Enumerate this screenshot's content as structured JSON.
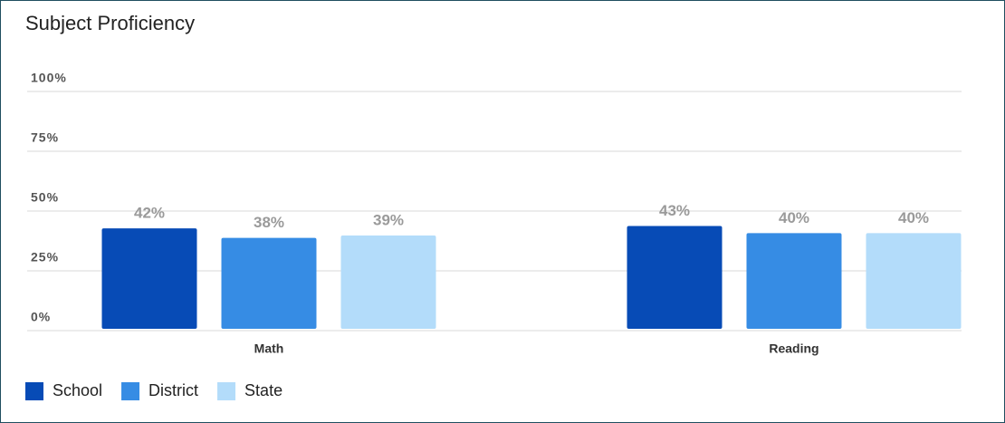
{
  "chart_data": {
    "type": "bar",
    "title": "Subject Proficiency",
    "categories": [
      "Math",
      "Reading"
    ],
    "series": [
      {
        "name": "School",
        "color": "#074bb6",
        "values": [
          42,
          43
        ],
        "value_labels": [
          "42%",
          "43%"
        ]
      },
      {
        "name": "District",
        "color": "#368ce4",
        "values": [
          38,
          40
        ],
        "value_labels": [
          "38%",
          "40%"
        ]
      },
      {
        "name": "State",
        "color": "#b3dcfa",
        "values": [
          39,
          40
        ],
        "value_labels": [
          "39%",
          "40%"
        ]
      }
    ],
    "ylim": [
      0,
      100
    ],
    "yticks": [
      {
        "value": 0,
        "label": "0%"
      },
      {
        "value": 25,
        "label": "25%"
      },
      {
        "value": 50,
        "label": "50%"
      },
      {
        "value": 75,
        "label": "75%"
      },
      {
        "value": 100,
        "label": "100%"
      }
    ],
    "grid": true,
    "legend": "bottom-left"
  }
}
